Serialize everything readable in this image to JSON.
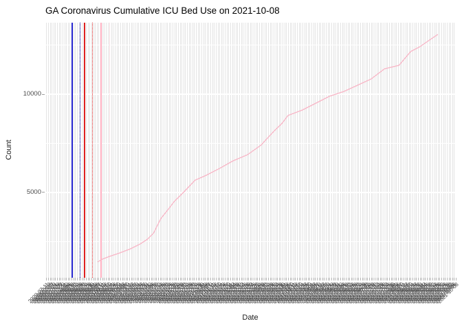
{
  "title": "GA Coronavirus Cumulative ICU Bed Use on 2021-10-08",
  "axes": {
    "x_title": "Date",
    "y_title": "Count",
    "y_tick_labels": [
      "5000",
      "10000"
    ]
  },
  "colors": {
    "background": "#ffffff",
    "stripe_gridline": "#e4e4e4",
    "horizontal_gridline": "#ffffff",
    "axis_text": "#4d4d4d",
    "series_pink": "#f8b4c5",
    "event_blue": "#2323cd",
    "event_red": "#de2020",
    "event_pink_solid": "#ffafc0",
    "event_pink_dotted": "#ffd2db"
  },
  "chart_data": {
    "type": "line",
    "title": "GA Coronavirus Cumulative ICU Bed Use on 2021-10-08",
    "xlabel": "Date",
    "ylabel": "Count",
    "x_axis": {
      "start": "2020-07-10",
      "end": "2021-10-08",
      "label_format": "YYYY-MM-DD",
      "label_every_days": 2,
      "labels_rotated_deg": 45
    },
    "ylim": [
      660,
      13640
    ],
    "y_major_ticks": [
      5000,
      10000
    ],
    "y_minor_gridlines": [
      2500,
      7500,
      12500
    ],
    "grid": "white-on-striped-panel",
    "legend": "none",
    "series": [
      {
        "name": "cumulative-icu-bed-use",
        "color": "#f8b4c5",
        "points": [
          [
            "2020-09-06",
            1470
          ],
          [
            "2020-09-11",
            1610
          ],
          [
            "2020-09-19",
            1750
          ],
          [
            "2020-09-30",
            1920
          ],
          [
            "2020-10-12",
            2130
          ],
          [
            "2020-10-23",
            2380
          ],
          [
            "2020-10-31",
            2620
          ],
          [
            "2020-11-07",
            2940
          ],
          [
            "2020-11-15",
            3670
          ],
          [
            "2020-11-23",
            4130
          ],
          [
            "2020-11-30",
            4550
          ],
          [
            "2020-12-10",
            5000
          ],
          [
            "2020-12-23",
            5630
          ],
          [
            "2021-01-04",
            5870
          ],
          [
            "2021-01-19",
            6220
          ],
          [
            "2021-02-03",
            6610
          ],
          [
            "2021-02-19",
            6920
          ],
          [
            "2021-03-06",
            7410
          ],
          [
            "2021-03-21",
            8150
          ],
          [
            "2021-03-29",
            8500
          ],
          [
            "2021-04-05",
            8920
          ],
          [
            "2021-04-21",
            9195
          ],
          [
            "2021-05-06",
            9545
          ],
          [
            "2021-05-21",
            9895
          ],
          [
            "2021-06-06",
            10140
          ],
          [
            "2021-06-21",
            10455
          ],
          [
            "2021-07-06",
            10770
          ],
          [
            "2021-07-21",
            11290
          ],
          [
            "2021-08-06",
            11470
          ],
          [
            "2021-08-19",
            12170
          ],
          [
            "2021-08-29",
            12410
          ],
          [
            "2021-09-09",
            12760
          ],
          [
            "2021-09-18",
            13040
          ]
        ]
      }
    ],
    "event_vlines": [
      {
        "date": "2020-08-08",
        "color": "#2323cd",
        "style": "solid"
      },
      {
        "date": "2020-08-17",
        "color": "#2323cd",
        "style": "dotted"
      },
      {
        "date": "2020-08-22",
        "color": "#de2020",
        "style": "solid"
      },
      {
        "date": "2020-08-31",
        "color": "#de2020",
        "style": "dotted"
      },
      {
        "date": "2020-09-09",
        "color": "#ffafc0",
        "style": "solid"
      },
      {
        "date": "2020-09-19",
        "color": "#ffd2db",
        "style": "dotted"
      }
    ]
  }
}
